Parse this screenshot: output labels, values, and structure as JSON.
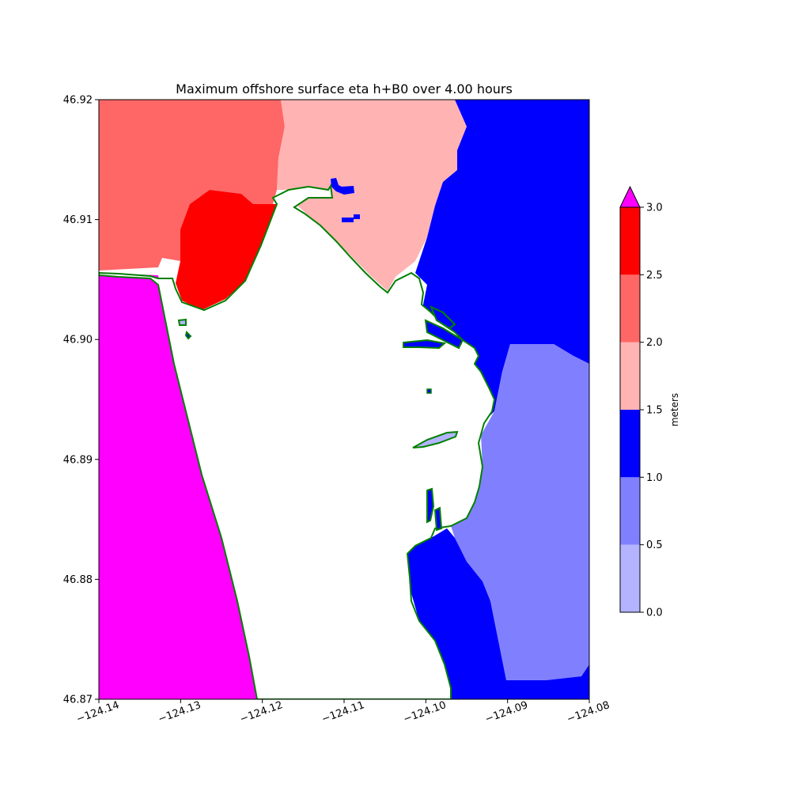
{
  "title": "Maximum offshore surface eta h+B0 over 4.00 hours",
  "x_axis": {
    "range": [
      -124.14,
      -124.08
    ],
    "ticks": [
      {
        "value": -124.14,
        "label": "−124.14"
      },
      {
        "value": -124.13,
        "label": "−124.13"
      },
      {
        "value": -124.12,
        "label": "−124.12"
      },
      {
        "value": -124.11,
        "label": "−124.11"
      },
      {
        "value": -124.1,
        "label": "−124.10"
      },
      {
        "value": -124.09,
        "label": "−124.09"
      },
      {
        "value": -124.08,
        "label": "−124.08"
      }
    ],
    "tick_label_rotation_deg": -20
  },
  "y_axis": {
    "range": [
      46.87,
      46.92
    ],
    "ticks": [
      {
        "value": 46.87,
        "label": "46.87"
      },
      {
        "value": 46.88,
        "label": "46.88"
      },
      {
        "value": 46.89,
        "label": "46.89"
      },
      {
        "value": 46.9,
        "label": "46.90"
      },
      {
        "value": 46.91,
        "label": "46.91"
      },
      {
        "value": 46.92,
        "label": "46.92"
      }
    ]
  },
  "colorbar": {
    "label": "meters",
    "extend": "max",
    "over_color": "#ff00ff",
    "bins": [
      {
        "min": 0.0,
        "max": 0.5,
        "color": "#b3b3ff"
      },
      {
        "min": 0.5,
        "max": 1.0,
        "color": "#8080ff"
      },
      {
        "min": 1.0,
        "max": 1.5,
        "color": "#0000ff"
      },
      {
        "min": 1.5,
        "max": 2.0,
        "color": "#ffb3b3"
      },
      {
        "min": 2.0,
        "max": 2.5,
        "color": "#ff6666"
      },
      {
        "min": 2.5,
        "max": 3.0,
        "color": "#ff0000"
      }
    ],
    "ticks": [
      {
        "value": 0.0,
        "label": "0.0"
      },
      {
        "value": 0.5,
        "label": "0.5"
      },
      {
        "value": 1.0,
        "label": "1.0"
      },
      {
        "value": 1.5,
        "label": "1.5"
      },
      {
        "value": 2.0,
        "label": "2.0"
      },
      {
        "value": 2.5,
        "label": "2.5"
      },
      {
        "value": 3.0,
        "label": "3.0"
      }
    ]
  },
  "colors": {
    "land": "#ffffff",
    "shoreline": "#008000",
    "sea_over": "#ff00ff",
    "sea_2_5_3_0": "#ff0000",
    "sea_2_0_2_5": "#ff6666",
    "sea_1_5_2_0": "#ffb3b3",
    "sea_1_0_1_5": "#0000ff",
    "sea_0_5_1_0": "#8080ff",
    "sea_0_0_0_5": "#b3b3ff"
  }
}
